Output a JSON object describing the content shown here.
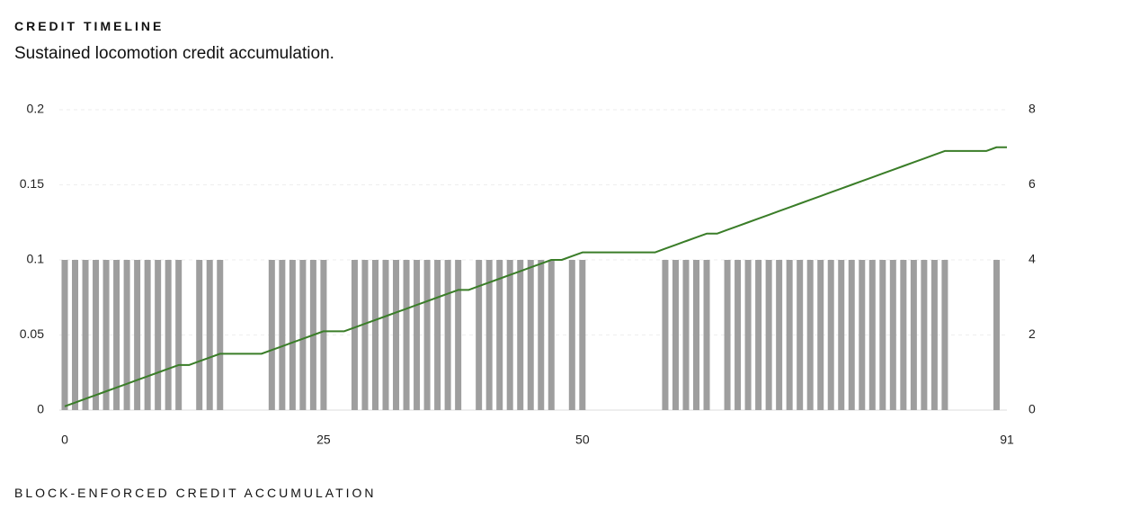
{
  "header": {
    "title": "CREDIT TIMELINE",
    "subtitle": "Sustained locomotion credit accumulation."
  },
  "footer": {
    "title": "BLOCK-ENFORCED CREDIT ACCUMULATION"
  },
  "chart_data": {
    "type": "combo",
    "x": [
      0,
      1,
      2,
      3,
      4,
      5,
      6,
      7,
      8,
      9,
      10,
      11,
      12,
      13,
      14,
      15,
      16,
      17,
      18,
      19,
      20,
      21,
      22,
      23,
      24,
      25,
      26,
      27,
      28,
      29,
      30,
      31,
      32,
      33,
      34,
      35,
      36,
      37,
      38,
      39,
      40,
      41,
      42,
      43,
      44,
      45,
      46,
      47,
      48,
      49,
      50,
      51,
      52,
      53,
      54,
      55,
      56,
      57,
      58,
      59,
      60,
      61,
      62,
      63,
      64,
      65,
      66,
      67,
      68,
      69,
      70,
      71,
      72,
      73,
      74,
      75,
      76,
      77,
      78,
      79,
      80,
      81,
      82,
      83,
      84,
      85,
      86,
      87,
      88,
      89,
      90,
      91
    ],
    "xlim": [
      0,
      91
    ],
    "xticks": [
      0,
      25,
      50,
      91
    ],
    "ylim": [
      0,
      0.2
    ],
    "yticks": [
      0,
      0.05,
      0.1,
      0.15,
      0.2
    ],
    "y2lim": [
      0,
      8
    ],
    "y2ticks": [
      0,
      2,
      4,
      6,
      8
    ],
    "grid": true,
    "series": [
      {
        "type": "bar",
        "color": "#9e9e9e",
        "values": [
          0.1,
          0.1,
          0.1,
          0.1,
          0.1,
          0.1,
          0.1,
          0.1,
          0.1,
          0.1,
          0.1,
          0.1,
          0,
          0.1,
          0.1,
          0.1,
          0,
          0,
          0,
          0,
          0.1,
          0.1,
          0.1,
          0.1,
          0.1,
          0.1,
          0,
          0,
          0.1,
          0.1,
          0.1,
          0.1,
          0.1,
          0.1,
          0.1,
          0.1,
          0.1,
          0.1,
          0.1,
          0,
          0.1,
          0.1,
          0.1,
          0.1,
          0.1,
          0.1,
          0.1,
          0.1,
          0,
          0.1,
          0.1,
          0,
          0,
          0,
          0,
          0,
          0,
          0,
          0.1,
          0.1,
          0.1,
          0.1,
          0.1,
          0,
          0.1,
          0.1,
          0.1,
          0.1,
          0.1,
          0.1,
          0.1,
          0.1,
          0.1,
          0.1,
          0.1,
          0.1,
          0.1,
          0.1,
          0.1,
          0.1,
          0.1,
          0.1,
          0.1,
          0.1,
          0.1,
          0.1,
          0,
          0,
          0,
          0,
          0.1,
          0
        ]
      },
      {
        "type": "line",
        "axis": "y2",
        "color": "#3a7d28",
        "values": [
          0.1,
          0.2,
          0.3,
          0.4,
          0.5,
          0.6,
          0.7,
          0.8,
          0.9,
          1.0,
          1.1,
          1.2,
          1.2,
          1.3,
          1.4,
          1.5,
          1.5,
          1.5,
          1.5,
          1.5,
          1.6,
          1.7,
          1.8,
          1.9,
          2.0,
          2.1,
          2.1,
          2.1,
          2.2,
          2.3,
          2.4,
          2.5,
          2.6,
          2.7,
          2.8,
          2.9,
          3.0,
          3.1,
          3.2,
          3.2,
          3.3,
          3.4,
          3.5,
          3.6,
          3.7,
          3.8,
          3.9,
          4.0,
          4.0,
          4.1,
          4.2,
          4.2,
          4.2,
          4.2,
          4.2,
          4.2,
          4.2,
          4.2,
          4.3,
          4.4,
          4.5,
          4.6,
          4.7,
          4.7,
          4.8,
          4.9,
          5.0,
          5.1,
          5.2,
          5.3,
          5.4,
          5.5,
          5.6,
          5.7,
          5.8,
          5.9,
          6.0,
          6.1,
          6.2,
          6.3,
          6.4,
          6.5,
          6.6,
          6.7,
          6.8,
          6.9,
          6.9,
          6.9,
          6.9,
          6.9,
          7.0,
          7.0
        ]
      }
    ]
  }
}
